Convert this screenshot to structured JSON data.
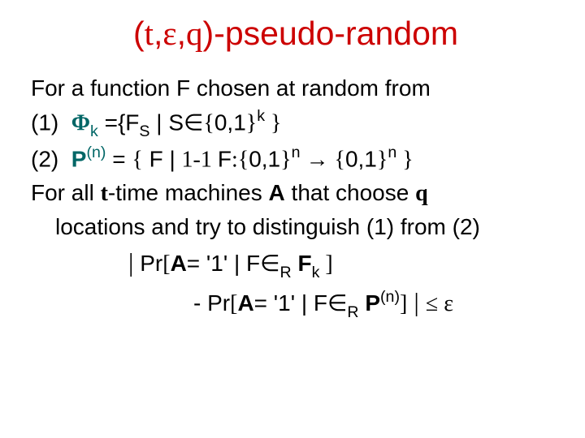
{
  "colors": {
    "title": "#cc0000",
    "body": "#000000",
    "accent_teal": "#006666",
    "bold_black": "#000000"
  },
  "fonts": {
    "title_size": 41,
    "body_size": 28,
    "title_family": "Arial",
    "body_family": "Arial"
  },
  "title": {
    "open": "(",
    "t": "t",
    "c1": ",",
    "eps": "ε",
    "c2": ",",
    "q": "q",
    "close": ")",
    "tail": "-pseudo-random"
  },
  "lines": {
    "l1": "For a function F chosen at random from",
    "l2": {
      "num": "(1)",
      "phi": "Φ",
      "k": "k",
      "eq": " ={F",
      "s_sub_S": "S",
      "bar": " | S",
      "in": "∈",
      "lb": "{",
      "zeroone": "0,1",
      "rb": "}",
      "sup_k": "k",
      "tail": " }"
    },
    "l3": {
      "num": "(2)",
      "P": "P",
      "sup_n": "(n)",
      "eq": " = ",
      "lb1": "{",
      "mid1": " F | ",
      "oneone": "1-1  ",
      "F2": "F",
      "colon": ":",
      "lb2": "{",
      "zo1": "0,1",
      "rb2": "}",
      "sup_n2": "n",
      "arrow": " →     ",
      "lb3": "{",
      "zo2": "0,1",
      "rb3": "}",
      "sup_n3": "n",
      "rb1": " }"
    },
    "l4a": "For all  ",
    "l4_t": "t",
    "l4b": "-time machines ",
    "l4_A": "A",
    "l4c": " that choose ",
    "l4_q": "q",
    "l5": "locations and try to distinguish (1) from (2)",
    "l6": {
      "bigbar": "|",
      "pr": " Pr",
      "lbr": "[",
      "A": "A",
      "eq1": "= '1'  |  F",
      "in": "∈",
      "R": "R",
      "Fk_F": " F",
      "Fk_k": "k",
      "rbr": " ]"
    },
    "l7": {
      "dash": "- Pr",
      "lbr": "[",
      "A": "A",
      "eq1": "= '1' |  F",
      "in": "∈",
      "R": "R",
      "P": " P",
      "sup_n": "(n)",
      "rbr": "]",
      "bigbar": " | ",
      "le": "≤",
      "eps": "  ε"
    }
  }
}
